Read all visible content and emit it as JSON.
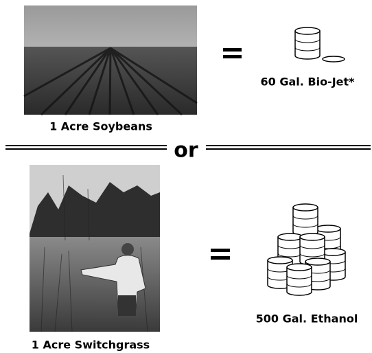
{
  "top": {
    "source_label": "1 Acre Soybeans",
    "result_label": "60 Gal. Bio-Jet*"
  },
  "separator": "or",
  "bottom": {
    "source_label": "1 Acre Switchgrass",
    "result_label": "500 Gal. Ethanol"
  }
}
